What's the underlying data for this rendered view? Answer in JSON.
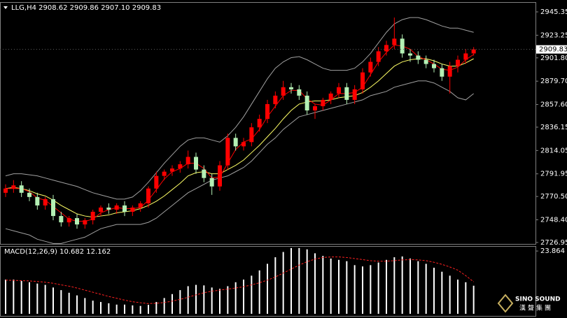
{
  "chart_data": [
    {
      "type": "candlestick",
      "title": "LLG,H4  2908.62 2909.86 2907.10 2909.83",
      "up_color": "#ff0000",
      "down_color": "#b4f0b4",
      "last_price": 2909.83,
      "ylim": [
        2724.9,
        2953.3
      ],
      "yticks": [
        2945.35,
        2923.25,
        {
          "value": 2901.8,
          "label": "2901.80"
        },
        {
          "value": 2879.7,
          "label": "2879.70"
        },
        {
          "value": 2857.6,
          "label": "2857.60"
        },
        2836.15,
        2814.05,
        2791.95,
        {
          "value": 2770.5,
          "label": "2770.50"
        },
        {
          "value": 2748.4,
          "label": "2748.40"
        },
        2726.95
      ],
      "open": [
        2774,
        2778,
        2781,
        2774,
        2770,
        2762,
        2768,
        2752,
        2746,
        2750,
        2744,
        2748,
        2756,
        2760,
        2758,
        2762,
        2756,
        2760,
        2764,
        2778,
        2790,
        2794,
        2797,
        2801,
        2808,
        2796,
        2788,
        2780,
        2800,
        2826,
        2818,
        2822,
        2836,
        2844,
        2858,
        2866,
        2874,
        2872,
        2866,
        2852,
        2856,
        2862,
        2868,
        2874,
        2862,
        2872,
        2888,
        2898,
        2908,
        2914,
        2920,
        2906,
        2904,
        2900,
        2896,
        2892,
        2884,
        2894,
        2900,
        2906
      ],
      "high": [
        2782,
        2786,
        2785,
        2778,
        2774,
        2770,
        2772,
        2756,
        2752,
        2754,
        2750,
        2758,
        2762,
        2764,
        2764,
        2766,
        2762,
        2766,
        2780,
        2794,
        2796,
        2800,
        2804,
        2814,
        2812,
        2800,
        2792,
        2804,
        2830,
        2830,
        2826,
        2840,
        2848,
        2862,
        2870,
        2880,
        2878,
        2876,
        2870,
        2858,
        2864,
        2870,
        2878,
        2878,
        2876,
        2892,
        2902,
        2912,
        2918,
        2940,
        2924,
        2910,
        2908,
        2904,
        2900,
        2896,
        2898,
        2904,
        2910,
        2912
      ],
      "low": [
        2770,
        2774,
        2770,
        2766,
        2758,
        2758,
        2748,
        2742,
        2742,
        2740,
        2740,
        2744,
        2752,
        2754,
        2754,
        2752,
        2752,
        2756,
        2760,
        2774,
        2786,
        2790,
        2793,
        2797,
        2792,
        2784,
        2772,
        2776,
        2796,
        2814,
        2814,
        2818,
        2832,
        2840,
        2854,
        2862,
        2868,
        2862,
        2848,
        2844,
        2852,
        2858,
        2864,
        2858,
        2858,
        2868,
        2884,
        2894,
        2904,
        2910,
        2902,
        2898,
        2896,
        2892,
        2888,
        2880,
        2868,
        2888,
        2896,
        2904
      ],
      "close": [
        2778,
        2781,
        2774,
        2770,
        2762,
        2768,
        2752,
        2746,
        2750,
        2744,
        2748,
        2756,
        2760,
        2758,
        2762,
        2756,
        2760,
        2764,
        2778,
        2790,
        2794,
        2797,
        2801,
        2808,
        2796,
        2788,
        2780,
        2800,
        2826,
        2818,
        2822,
        2836,
        2844,
        2858,
        2866,
        2874,
        2872,
        2866,
        2852,
        2856,
        2862,
        2868,
        2874,
        2862,
        2872,
        2888,
        2898,
        2908,
        2914,
        2920,
        2906,
        2904,
        2900,
        2896,
        2892,
        2884,
        2894,
        2900,
        2906,
        2909.83
      ],
      "series": [
        {
          "color": "#a0a0a0",
          "values": [
            2790,
            2792,
            2792,
            2791,
            2790,
            2788,
            2786,
            2784,
            2782,
            2780,
            2777,
            2774,
            2772,
            2770,
            2768,
            2768,
            2770,
            2776,
            2784,
            2793,
            2802,
            2810,
            2818,
            2824,
            2826,
            2826,
            2824,
            2822,
            2828,
            2836,
            2846,
            2858,
            2870,
            2882,
            2892,
            2898,
            2902,
            2903,
            2900,
            2896,
            2892,
            2890,
            2890,
            2890,
            2892,
            2898,
            2906,
            2916,
            2926,
            2934,
            2938,
            2940,
            2940,
            2938,
            2935,
            2932,
            2930,
            2930,
            2928,
            2926
          ]
        },
        {
          "color": "#a0a0a0",
          "values": [
            2740,
            2738,
            2736,
            2734,
            2730,
            2728,
            2726,
            2726,
            2728,
            2730,
            2732,
            2736,
            2740,
            2742,
            2744,
            2744,
            2744,
            2744,
            2746,
            2750,
            2756,
            2762,
            2768,
            2774,
            2778,
            2782,
            2786,
            2788,
            2790,
            2794,
            2798,
            2804,
            2812,
            2820,
            2826,
            2834,
            2840,
            2846,
            2848,
            2850,
            2852,
            2854,
            2856,
            2858,
            2860,
            2862,
            2866,
            2868,
            2870,
            2874,
            2876,
            2878,
            2880,
            2880,
            2878,
            2874,
            2870,
            2864,
            2862,
            2868
          ]
        },
        {
          "color": "#ffff66",
          "values": [
            2778,
            2779,
            2778,
            2776,
            2773,
            2771,
            2767,
            2762,
            2758,
            2754,
            2752,
            2751,
            2752,
            2753,
            2755,
            2756,
            2757,
            2759,
            2762,
            2766,
            2771,
            2777,
            2783,
            2790,
            2793,
            2794,
            2792,
            2792,
            2796,
            2800,
            2805,
            2812,
            2819,
            2827,
            2835,
            2844,
            2852,
            2858,
            2860,
            2861,
            2861,
            2862,
            2864,
            2865,
            2866,
            2869,
            2874,
            2880,
            2887,
            2894,
            2898,
            2900,
            2901,
            2901,
            2899,
            2896,
            2894,
            2894,
            2897,
            2901
          ]
        },
        {
          "color": "#ff0000",
          "values": [
            2778,
            2778,
            2778,
            2775,
            2769,
            2767,
            2761,
            2755,
            2749,
            2747,
            2747,
            2749,
            2755,
            2758,
            2760,
            2759,
            2759,
            2760,
            2767,
            2777,
            2787,
            2794,
            2797,
            2802,
            2802,
            2797,
            2788,
            2789,
            2802,
            2815,
            2822,
            2825,
            2834,
            2846,
            2856,
            2866,
            2871,
            2871,
            2863,
            2858,
            2857,
            2862,
            2868,
            2868,
            2869,
            2874,
            2886,
            2898,
            2907,
            2914,
            2913,
            2910,
            2903,
            2900,
            2896,
            2891,
            2890,
            2893,
            2900,
            2905
          ]
        }
      ]
    },
    {
      "type": "macd",
      "title": "MACD(12,26,9) 10.682 12.162",
      "color": "#ffffff",
      "signal_color": "#ff2020",
      "ylim": [
        0,
        25.5
      ],
      "yticks": [
        23.864
      ],
      "values": [
        13,
        13,
        12.5,
        12,
        11.5,
        11,
        10,
        9,
        8,
        7,
        6,
        5,
        4.5,
        4,
        3.5,
        3.5,
        3.2,
        3,
        3.4,
        4.5,
        6,
        7.5,
        9,
        10.5,
        11,
        10.8,
        10,
        9.5,
        10.5,
        12,
        13,
        14.5,
        16.5,
        19,
        21.5,
        23.5,
        25,
        25,
        24.5,
        23,
        22,
        21,
        20.5,
        20,
        18.5,
        18,
        18.5,
        19.5,
        20.5,
        21.5,
        21.8,
        21,
        20,
        19,
        17.5,
        16,
        14.5,
        13,
        12,
        10.682
      ],
      "signal": [
        12.8,
        12.7,
        12.6,
        12.5,
        12.3,
        12,
        11.6,
        11,
        10.5,
        9.8,
        9,
        8.2,
        7.4,
        6.6,
        5.9,
        5.2,
        4.6,
        4.2,
        3.9,
        4,
        4.3,
        4.8,
        5.5,
        6.3,
        7.2,
        8,
        8.6,
        9,
        9.4,
        9.8,
        10.3,
        11,
        11.8,
        12.8,
        14,
        15.5,
        17,
        18.5,
        19.8,
        20.8,
        21.4,
        21.6,
        21.6,
        21.4,
        21,
        20.6,
        20.2,
        20,
        20,
        20.2,
        20.5,
        20.6,
        20.5,
        20.2,
        19.6,
        18.8,
        17.8,
        16.6,
        14.5,
        12.162
      ]
    }
  ],
  "watermark": {
    "brand": "SINO SOUND",
    "cn": "漢聲集團"
  }
}
